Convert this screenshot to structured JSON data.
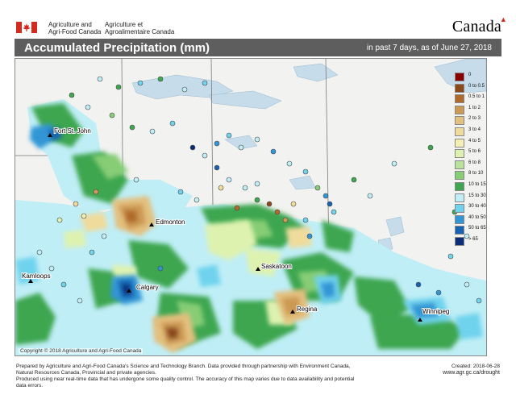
{
  "header": {
    "department_en": [
      "Agriculture and",
      "Agri-Food Canada"
    ],
    "department_fr": [
      "Agriculture et",
      "Agroalimentaire Canada"
    ],
    "wordmark": "Canada",
    "flag_color": "#d52b1e"
  },
  "titlebar": {
    "title": "Accumulated Precipitation (mm)",
    "subtitle": "in past 7 days, as of June 27, 2018",
    "color": "#5e5e5e"
  },
  "map": {
    "cities": [
      {
        "name": "Fort St. John",
        "id": "fort-st-john"
      },
      {
        "name": "Edmonton",
        "id": "edmonton"
      },
      {
        "name": "Kamloops",
        "id": "kamloops"
      },
      {
        "name": "Calgary",
        "id": "calgary"
      },
      {
        "name": "Saskatoon",
        "id": "saskatoon"
      },
      {
        "name": "Regina",
        "id": "regina"
      },
      {
        "name": "Winnipeg",
        "id": "winnipeg"
      }
    ],
    "copyright": "Copyright © 2018 Agriculture and Agri-Food Canada"
  },
  "legend": [
    {
      "label": "0",
      "color": "#8b0000"
    },
    {
      "label": "0 to 0.5",
      "color": "#8c4a1a"
    },
    {
      "label": "0.5 to 1",
      "color": "#b06a2c"
    },
    {
      "label": "1 to 2",
      "color": "#cd9a55"
    },
    {
      "label": "2 to 3",
      "color": "#e3c07e"
    },
    {
      "label": "3 to 4",
      "color": "#efdb9c"
    },
    {
      "label": "4 to 5",
      "color": "#f4f0b4"
    },
    {
      "label": "5 to 6",
      "color": "#def2b0"
    },
    {
      "label": "6 to 8",
      "color": "#b9e39a"
    },
    {
      "label": "8 to 10",
      "color": "#86cd74"
    },
    {
      "label": "10 to 15",
      "color": "#3da64f"
    },
    {
      "label": "15 to 30",
      "color": "#bfeef6"
    },
    {
      "label": "30 to 40",
      "color": "#6fd3ee"
    },
    {
      "label": "40 to 50",
      "color": "#3196d6"
    },
    {
      "label": "50 to 65",
      "color": "#1563b2"
    },
    {
      "label": "> 65",
      "color": "#0a2f78"
    }
  ],
  "footer": {
    "lines": [
      "Prepared by Agriculture and Agri-Food Canada's Science and Technology Branch. Data provided through partnership with Environment Canada,",
      "Natural Resources Canada, Provincial and private agencies.",
      "Produced using near real-time data that has undergone some quality control. The accuracy of this map varies due to data availability and potential data errors."
    ],
    "created": "Created: 2018-06-28",
    "url": "www.agr.gc.ca/drought"
  }
}
